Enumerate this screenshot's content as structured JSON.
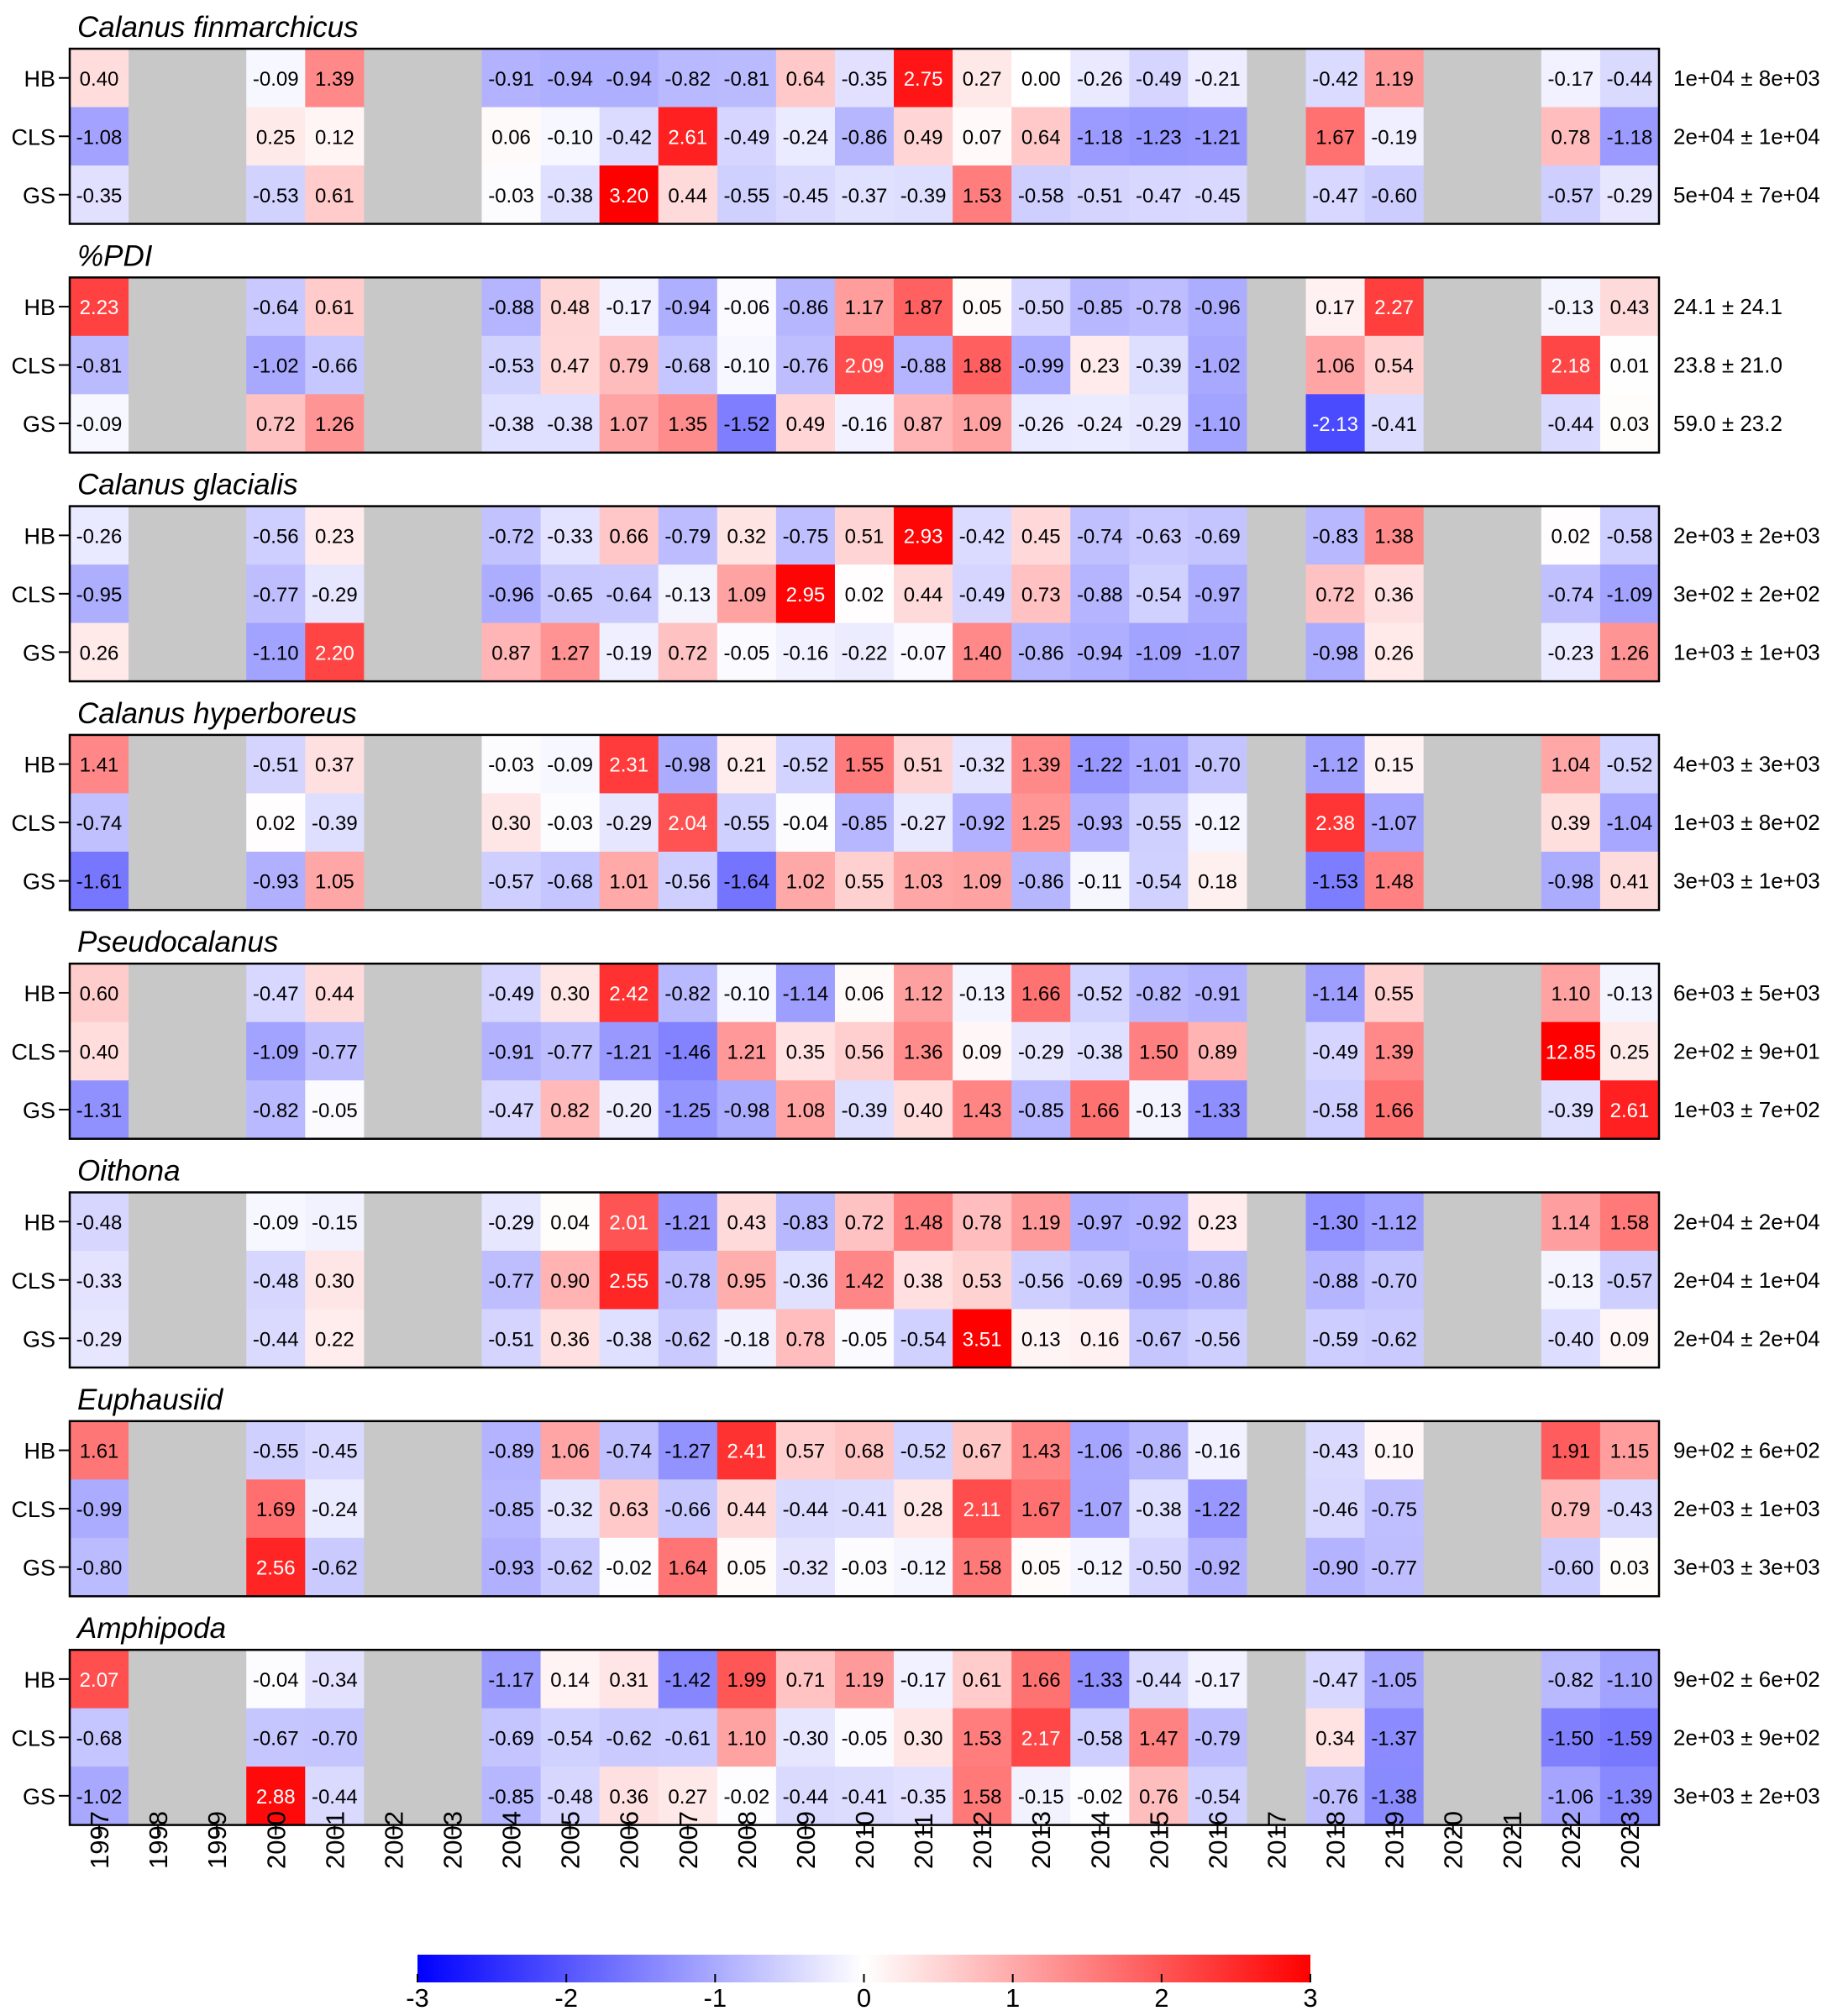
{
  "chart_data": {
    "type": "heatmap",
    "years": [
      "1997",
      "1998",
      "1999",
      "2000",
      "2001",
      "2002",
      "2003",
      "2004",
      "2005",
      "2006",
      "2007",
      "2008",
      "2009",
      "2010",
      "2011",
      "2012",
      "2013",
      "2014",
      "2015",
      "2016",
      "2017",
      "2018",
      "2019",
      "2020",
      "2021",
      "2022",
      "2023"
    ],
    "color_scale": {
      "min": -3,
      "max": 3,
      "low_color": "#0000ff",
      "mid_color": "#ffffff",
      "high_color": "#ff0000",
      "missing_color": "#c8c8c8",
      "ticks": [
        "-3",
        "-2",
        "-1",
        "0",
        "1",
        "2",
        "3"
      ]
    },
    "panels": [
      {
        "title": "Calanus finmarchicus",
        "rows": [
          {
            "label": "HB",
            "values": [
              "0.40",
              null,
              null,
              "-0.09",
              "1.39",
              null,
              null,
              "-0.91",
              "-0.94",
              "-0.94",
              "-0.82",
              "-0.81",
              "0.64",
              "-0.35",
              "2.75",
              "0.27",
              "0.00",
              "-0.26",
              "-0.49",
              "-0.21",
              null,
              "-0.42",
              "1.19",
              null,
              null,
              "-0.17",
              "-0.44"
            ],
            "summary": "1e+04 ± 8e+03"
          },
          {
            "label": "CLS",
            "values": [
              "-1.08",
              null,
              null,
              "0.25",
              "0.12",
              null,
              null,
              "0.06",
              "-0.10",
              "-0.42",
              "2.61",
              "-0.49",
              "-0.24",
              "-0.86",
              "0.49",
              "0.07",
              "0.64",
              "-1.18",
              "-1.23",
              "-1.21",
              null,
              "1.67",
              "-0.19",
              null,
              null,
              "0.78",
              "-1.18"
            ],
            "summary": "2e+04 ± 1e+04"
          },
          {
            "label": "GS",
            "values": [
              "-0.35",
              null,
              null,
              "-0.53",
              "0.61",
              null,
              null,
              "-0.03",
              "-0.38",
              "3.20",
              "0.44",
              "-0.55",
              "-0.45",
              "-0.37",
              "-0.39",
              "1.53",
              "-0.58",
              "-0.51",
              "-0.47",
              "-0.45",
              null,
              "-0.47",
              "-0.60",
              null,
              null,
              "-0.57",
              "-0.29"
            ],
            "summary": "5e+04 ± 7e+04"
          }
        ]
      },
      {
        "title": "%PDI",
        "rows": [
          {
            "label": "HB",
            "values": [
              "2.23",
              null,
              null,
              "-0.64",
              "0.61",
              null,
              null,
              "-0.88",
              "0.48",
              "-0.17",
              "-0.94",
              "-0.06",
              "-0.86",
              "1.17",
              "1.87",
              "0.05",
              "-0.50",
              "-0.85",
              "-0.78",
              "-0.96",
              null,
              "0.17",
              "2.27",
              null,
              null,
              "-0.13",
              "0.43"
            ],
            "summary": "24.1 ± 24.1"
          },
          {
            "label": "CLS",
            "values": [
              "-0.81",
              null,
              null,
              "-1.02",
              "-0.66",
              null,
              null,
              "-0.53",
              "0.47",
              "0.79",
              "-0.68",
              "-0.10",
              "-0.76",
              "2.09",
              "-0.88",
              "1.88",
              "-0.99",
              "0.23",
              "-0.39",
              "-1.02",
              null,
              "1.06",
              "0.54",
              null,
              null,
              "2.18",
              "0.01"
            ],
            "summary": "23.8 ± 21.0"
          },
          {
            "label": "GS",
            "values": [
              "-0.09",
              null,
              null,
              "0.72",
              "1.26",
              null,
              null,
              "-0.38",
              "-0.38",
              "1.07",
              "1.35",
              "-1.52",
              "0.49",
              "-0.16",
              "0.87",
              "1.09",
              "-0.26",
              "-0.24",
              "-0.29",
              "-1.10",
              null,
              "-2.13",
              "-0.41",
              null,
              null,
              "-0.44",
              "0.03"
            ],
            "summary": "59.0 ± 23.2"
          }
        ]
      },
      {
        "title": "Calanus glacialis",
        "rows": [
          {
            "label": "HB",
            "values": [
              "-0.26",
              null,
              null,
              "-0.56",
              "0.23",
              null,
              null,
              "-0.72",
              "-0.33",
              "0.66",
              "-0.79",
              "0.32",
              "-0.75",
              "0.51",
              "2.93",
              "-0.42",
              "0.45",
              "-0.74",
              "-0.63",
              "-0.69",
              null,
              "-0.83",
              "1.38",
              null,
              null,
              "0.02",
              "-0.58"
            ],
            "summary": "2e+03 ± 2e+03"
          },
          {
            "label": "CLS",
            "values": [
              "-0.95",
              null,
              null,
              "-0.77",
              "-0.29",
              null,
              null,
              "-0.96",
              "-0.65",
              "-0.64",
              "-0.13",
              "1.09",
              "2.95",
              "0.02",
              "0.44",
              "-0.49",
              "0.73",
              "-0.88",
              "-0.54",
              "-0.97",
              null,
              "0.72",
              "0.36",
              null,
              null,
              "-0.74",
              "-1.09"
            ],
            "summary": "3e+02 ± 2e+02"
          },
          {
            "label": "GS",
            "values": [
              "0.26",
              null,
              null,
              "-1.10",
              "2.20",
              null,
              null,
              "0.87",
              "1.27",
              "-0.19",
              "0.72",
              "-0.05",
              "-0.16",
              "-0.22",
              "-0.07",
              "1.40",
              "-0.86",
              "-0.94",
              "-1.09",
              "-1.07",
              null,
              "-0.98",
              "0.26",
              null,
              null,
              "-0.23",
              "1.26"
            ],
            "summary": "1e+03 ± 1e+03"
          }
        ]
      },
      {
        "title": "Calanus hyperboreus",
        "rows": [
          {
            "label": "HB",
            "values": [
              "1.41",
              null,
              null,
              "-0.51",
              "0.37",
              null,
              null,
              "-0.03",
              "-0.09",
              "2.31",
              "-0.98",
              "0.21",
              "-0.52",
              "1.55",
              "0.51",
              "-0.32",
              "1.39",
              "-1.22",
              "-1.01",
              "-0.70",
              null,
              "-1.12",
              "0.15",
              null,
              null,
              "1.04",
              "-0.52"
            ],
            "summary": "4e+03 ± 3e+03"
          },
          {
            "label": "CLS",
            "values": [
              "-0.74",
              null,
              null,
              "0.02",
              "-0.39",
              null,
              null,
              "0.30",
              "-0.03",
              "-0.29",
              "2.04",
              "-0.55",
              "-0.04",
              "-0.85",
              "-0.27",
              "-0.92",
              "1.25",
              "-0.93",
              "-0.55",
              "-0.12",
              null,
              "2.38",
              "-1.07",
              null,
              null,
              "0.39",
              "-1.04"
            ],
            "summary": "1e+03 ± 8e+02"
          },
          {
            "label": "GS",
            "values": [
              "-1.61",
              null,
              null,
              "-0.93",
              "1.05",
              null,
              null,
              "-0.57",
              "-0.68",
              "1.01",
              "-0.56",
              "-1.64",
              "1.02",
              "0.55",
              "1.03",
              "1.09",
              "-0.86",
              "-0.11",
              "-0.54",
              "0.18",
              null,
              "-1.53",
              "1.48",
              null,
              null,
              "-0.98",
              "0.41"
            ],
            "summary": "3e+03 ± 1e+03"
          }
        ]
      },
      {
        "title": "Pseudocalanus",
        "rows": [
          {
            "label": "HB",
            "values": [
              "0.60",
              null,
              null,
              "-0.47",
              "0.44",
              null,
              null,
              "-0.49",
              "0.30",
              "2.42",
              "-0.82",
              "-0.10",
              "-1.14",
              "0.06",
              "1.12",
              "-0.13",
              "1.66",
              "-0.52",
              "-0.82",
              "-0.91",
              null,
              "-1.14",
              "0.55",
              null,
              null,
              "1.10",
              "-0.13"
            ],
            "summary": "6e+03 ± 5e+03"
          },
          {
            "label": "CLS",
            "values": [
              "0.40",
              null,
              null,
              "-1.09",
              "-0.77",
              null,
              null,
              "-0.91",
              "-0.77",
              "-1.21",
              "-1.46",
              "1.21",
              "0.35",
              "0.56",
              "1.36",
              "0.09",
              "-0.29",
              "-0.38",
              "1.50",
              "0.89",
              null,
              "-0.49",
              "1.39",
              null,
              null,
              "12.85",
              "0.25"
            ],
            "summary": "2e+02 ± 9e+01"
          },
          {
            "label": "GS",
            "values": [
              "-1.31",
              null,
              null,
              "-0.82",
              "-0.05",
              null,
              null,
              "-0.47",
              "0.82",
              "-0.20",
              "-1.25",
              "-0.98",
              "1.08",
              "-0.39",
              "0.40",
              "1.43",
              "-0.85",
              "1.66",
              "-0.13",
              "-1.33",
              null,
              "-0.58",
              "1.66",
              null,
              null,
              "-0.39",
              "2.61"
            ],
            "summary": "1e+03 ± 7e+02"
          }
        ]
      },
      {
        "title": "Oithona",
        "rows": [
          {
            "label": "HB",
            "values": [
              "-0.48",
              null,
              null,
              "-0.09",
              "-0.15",
              null,
              null,
              "-0.29",
              "0.04",
              "2.01",
              "-1.21",
              "0.43",
              "-0.83",
              "0.72",
              "1.48",
              "0.78",
              "1.19",
              "-0.97",
              "-0.92",
              "0.23",
              null,
              "-1.30",
              "-1.12",
              null,
              null,
              "1.14",
              "1.58"
            ],
            "summary": "2e+04 ± 2e+04"
          },
          {
            "label": "CLS",
            "values": [
              "-0.33",
              null,
              null,
              "-0.48",
              "0.30",
              null,
              null,
              "-0.77",
              "0.90",
              "2.55",
              "-0.78",
              "0.95",
              "-0.36",
              "1.42",
              "0.38",
              "0.53",
              "-0.56",
              "-0.69",
              "-0.95",
              "-0.86",
              null,
              "-0.88",
              "-0.70",
              null,
              null,
              "-0.13",
              "-0.57"
            ],
            "summary": "2e+04 ± 1e+04"
          },
          {
            "label": "GS",
            "values": [
              "-0.29",
              null,
              null,
              "-0.44",
              "0.22",
              null,
              null,
              "-0.51",
              "0.36",
              "-0.38",
              "-0.62",
              "-0.18",
              "0.78",
              "-0.05",
              "-0.54",
              "3.51",
              "0.13",
              "0.16",
              "-0.67",
              "-0.56",
              null,
              "-0.59",
              "-0.62",
              null,
              null,
              "-0.40",
              "0.09"
            ],
            "summary": "2e+04 ± 2e+04"
          }
        ]
      },
      {
        "title": "Euphausiid",
        "rows": [
          {
            "label": "HB",
            "values": [
              "1.61",
              null,
              null,
              "-0.55",
              "-0.45",
              null,
              null,
              "-0.89",
              "1.06",
              "-0.74",
              "-1.27",
              "2.41",
              "0.57",
              "0.68",
              "-0.52",
              "0.67",
              "1.43",
              "-1.06",
              "-0.86",
              "-0.16",
              null,
              "-0.43",
              "0.10",
              null,
              null,
              "1.91",
              "1.15"
            ],
            "summary": "9e+02 ± 6e+02"
          },
          {
            "label": "CLS",
            "values": [
              "-0.99",
              null,
              null,
              "1.69",
              "-0.24",
              null,
              null,
              "-0.85",
              "-0.32",
              "0.63",
              "-0.66",
              "0.44",
              "-0.44",
              "-0.41",
              "0.28",
              "2.11",
              "1.67",
              "-1.07",
              "-0.38",
              "-1.22",
              null,
              "-0.46",
              "-0.75",
              null,
              null,
              "0.79",
              "-0.43"
            ],
            "summary": "2e+03 ± 1e+03"
          },
          {
            "label": "GS",
            "values": [
              "-0.80",
              null,
              null,
              "2.56",
              "-0.62",
              null,
              null,
              "-0.93",
              "-0.62",
              "-0.02",
              "1.64",
              "0.05",
              "-0.32",
              "-0.03",
              "-0.12",
              "1.58",
              "0.05",
              "-0.12",
              "-0.50",
              "-0.92",
              null,
              "-0.90",
              "-0.77",
              null,
              null,
              "-0.60",
              "0.03"
            ],
            "summary": "3e+03 ± 3e+03"
          }
        ]
      },
      {
        "title": "Amphipoda",
        "rows": [
          {
            "label": "HB",
            "values": [
              "2.07",
              null,
              null,
              "-0.04",
              "-0.34",
              null,
              null,
              "-1.17",
              "0.14",
              "0.31",
              "-1.42",
              "1.99",
              "0.71",
              "1.19",
              "-0.17",
              "0.61",
              "1.66",
              "-1.33",
              "-0.44",
              "-0.17",
              null,
              "-0.47",
              "-1.05",
              null,
              null,
              "-0.82",
              "-1.10"
            ],
            "summary": "9e+02 ± 6e+02"
          },
          {
            "label": "CLS",
            "values": [
              "-0.68",
              null,
              null,
              "-0.67",
              "-0.70",
              null,
              null,
              "-0.69",
              "-0.54",
              "-0.62",
              "-0.61",
              "1.10",
              "-0.30",
              "-0.05",
              "0.30",
              "1.53",
              "2.17",
              "-0.58",
              "1.47",
              "-0.79",
              null,
              "0.34",
              "-1.37",
              null,
              null,
              "-1.50",
              "-1.59"
            ],
            "summary": "2e+03 ± 9e+02"
          },
          {
            "label": "GS",
            "values": [
              "-1.02",
              null,
              null,
              "2.88",
              "-0.44",
              null,
              null,
              "-0.85",
              "-0.48",
              "0.36",
              "0.27",
              "-0.02",
              "-0.44",
              "-0.41",
              "-0.35",
              "1.58",
              "-0.15",
              "-0.02",
              "0.76",
              "-0.54",
              null,
              "-0.76",
              "-1.38",
              null,
              null,
              "-1.06",
              "-1.39"
            ],
            "summary": "3e+03 ± 2e+03"
          }
        ]
      }
    ]
  }
}
